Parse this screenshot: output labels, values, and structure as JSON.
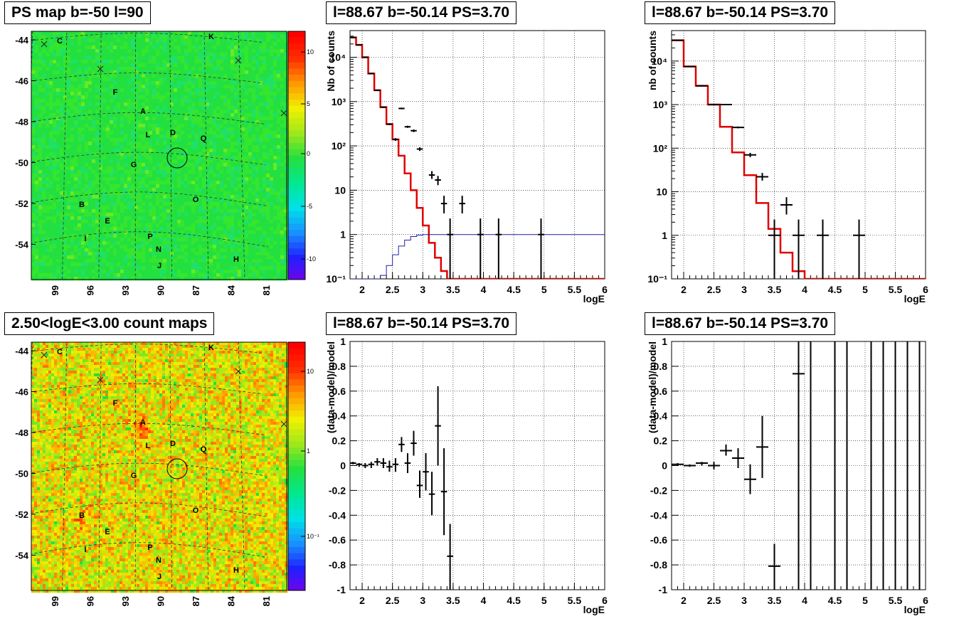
{
  "panels": [
    {
      "id": "ps-map",
      "title": "PS map b=-50 l=90",
      "type": "heatmap",
      "y_ticks": [
        "-44",
        "-46",
        "-48",
        "-50",
        "-52",
        "-54"
      ],
      "x_ticks": [
        "99",
        "96",
        "93",
        "90",
        "87",
        "84",
        "81"
      ],
      "colorbar_ticks": [
        "10",
        "5",
        "0",
        "-5",
        "-10"
      ],
      "base_color": "#22e040"
    },
    {
      "id": "count-map",
      "title": "2.50<logE<3.00 count maps",
      "type": "heatmap",
      "y_ticks": [
        "-44",
        "-46",
        "-48",
        "-50",
        "-52",
        "-54"
      ],
      "x_ticks": [
        "99",
        "96",
        "93",
        "90",
        "87",
        "84",
        "81"
      ],
      "colorbar_ticks": [
        "10",
        "1",
        "10⁻¹"
      ],
      "base_color": "#ee9a2a"
    }
  ],
  "map_labels": [
    {
      "text": "C",
      "lon": 98.3,
      "lat": -44.2
    },
    {
      "text": "K",
      "lon": 86.0,
      "lat": -43.9
    },
    {
      "text": "F",
      "lon": 94.0,
      "lat": -46.8
    },
    {
      "text": "A",
      "lon": 91.7,
      "lat": -47.9
    },
    {
      "text": "L",
      "lon": 91.1,
      "lat": -48.8
    },
    {
      "text": "D",
      "lon": 89.3,
      "lat": -48.8
    },
    {
      "text": "Q",
      "lon": 86.8,
      "lat": -49.0
    },
    {
      "text": "G",
      "lon": 92.4,
      "lat": -50.1
    },
    {
      "text": "O",
      "lon": 87.3,
      "lat": -51.9
    },
    {
      "text": "B",
      "lon": 96.6,
      "lat": -52.2
    },
    {
      "text": "E",
      "lon": 95.2,
      "lat": -53.0
    },
    {
      "text": "P",
      "lon": 91.0,
      "lat": -53.8
    },
    {
      "text": "I",
      "lon": 96.0,
      "lat": -54.0
    },
    {
      "text": "N",
      "lon": 90.2,
      "lat": -54.4
    },
    {
      "text": "H",
      "lon": 84.0,
      "lat": -54.9
    },
    {
      "text": "J",
      "lon": 90.2,
      "lat": -55.2
    }
  ],
  "chart_data": [
    {
      "type": "line",
      "title": "l=88.67 b=-50.14 PS=3.70",
      "xlabel": "logE",
      "ylabel": "Nb of counts",
      "xlim": [
        1.8,
        6.0
      ],
      "ylim": [
        0.1,
        40000
      ],
      "yscale": "log",
      "x_ticks": [
        "2",
        "2.5",
        "3",
        "3.5",
        "4",
        "4.5",
        "5",
        "5.5",
        "6"
      ],
      "y_ticks": [
        "10⁻¹",
        "1",
        "10",
        "10²",
        "10³",
        "10⁴"
      ],
      "grid": true,
      "edges": [
        1.8,
        1.9,
        2.0,
        2.1,
        2.2,
        2.3,
        2.4,
        2.5,
        2.6,
        2.7,
        2.8,
        2.9,
        3.0,
        3.1,
        3.2,
        3.3,
        3.4,
        3.5,
        3.6,
        3.7,
        3.8,
        3.9,
        4.0,
        4.1,
        4.2,
        4.3,
        4.4,
        4.5,
        4.6,
        4.7,
        4.8,
        4.9,
        5.0,
        5.1,
        5.2,
        5.3,
        5.4,
        5.5,
        5.6,
        5.7,
        5.8,
        5.9,
        6.0
      ],
      "series": [
        {
          "color": "#e00000",
          "width": 2.5,
          "values": [
            28000,
            19000,
            10000,
            4300,
            1800,
            750,
            310,
            140,
            60,
            24,
            10,
            4.0,
            1.6,
            0.65,
            0.3,
            0.15,
            0.1,
            0.1,
            0.1,
            0.1,
            0.1,
            0.1,
            0.1,
            0.1,
            0.1,
            0.1,
            0.1,
            0.1,
            0.1,
            0.1,
            0.1,
            0.1,
            0.1,
            0.1,
            0.1,
            0.1,
            0.1,
            0.1,
            0.1,
            0.1,
            0.1,
            0.1
          ]
        },
        {
          "color": "#2020b0",
          "width": 1,
          "values": [
            0.1,
            0.1,
            0.1,
            0.1,
            0.1,
            0.12,
            0.2,
            0.35,
            0.55,
            0.75,
            0.9,
            0.97,
            1.0,
            1.0,
            1.0,
            1.0,
            1.0,
            1.0,
            1.0,
            1.0,
            1.0,
            1.0,
            1.0,
            1.0,
            1.0,
            1.0,
            1.0,
            1.0,
            1.0,
            1.0,
            1.0,
            1.0,
            1.0,
            1.0,
            1.0,
            1.0,
            1.0,
            1.0,
            1.0,
            1.0,
            1.0,
            1.0
          ]
        }
      ],
      "points": [
        {
          "x": 1.85,
          "y": 28000,
          "lo": 27000,
          "hi": 29000,
          "xe": 0.05
        },
        {
          "x": 1.95,
          "y": 19000,
          "lo": 18500,
          "hi": 19500,
          "xe": 0.05
        },
        {
          "x": 2.05,
          "y": 10000,
          "lo": 9800,
          "hi": 10200,
          "xe": 0.05
        },
        {
          "x": 2.15,
          "y": 4300,
          "lo": 4200,
          "hi": 4400,
          "xe": 0.05
        },
        {
          "x": 2.25,
          "y": 1800,
          "lo": 1750,
          "hi": 1850,
          "xe": 0.05
        },
        {
          "x": 2.35,
          "y": 750,
          "lo": 720,
          "hi": 780,
          "xe": 0.05
        },
        {
          "x": 2.45,
          "y": 310,
          "lo": 295,
          "hi": 325,
          "xe": 0.05
        },
        {
          "x": 2.55,
          "y": 140,
          "lo": 130,
          "hi": 150,
          "xe": 0.05
        },
        {
          "x": 2.65,
          "y": 700,
          "lo": 670,
          "hi": 730,
          "xe": 0.05
        },
        {
          "x": 2.75,
          "y": 270,
          "lo": 255,
          "hi": 285,
          "xe": 0.05
        },
        {
          "x": 2.85,
          "y": 220,
          "lo": 205,
          "hi": 235,
          "xe": 0.05
        },
        {
          "x": 2.95,
          "y": 85,
          "lo": 77,
          "hi": 93,
          "xe": 0.05
        },
        {
          "x": 3.15,
          "y": 22,
          "lo": 18,
          "hi": 27,
          "xe": 0.05
        },
        {
          "x": 3.25,
          "y": 17,
          "lo": 13,
          "hi": 21,
          "xe": 0.05
        },
        {
          "x": 3.35,
          "y": 5,
          "lo": 3,
          "hi": 7.5,
          "xe": 0.05
        },
        {
          "x": 3.45,
          "y": 1,
          "lo": 0.1,
          "hi": 2.3,
          "xe": 0.05
        },
        {
          "x": 3.65,
          "y": 5,
          "lo": 3,
          "hi": 7.5,
          "xe": 0.05
        },
        {
          "x": 3.95,
          "y": 1,
          "lo": 0.1,
          "hi": 2.3,
          "xe": 0.05
        },
        {
          "x": 4.25,
          "y": 1,
          "lo": 0.1,
          "hi": 2.3,
          "xe": 0.05
        },
        {
          "x": 4.95,
          "y": 1,
          "lo": 0.1,
          "hi": 2.3,
          "xe": 0.05
        }
      ]
    },
    {
      "type": "line",
      "title": "l=88.67 b=-50.14 PS=3.70",
      "xlabel": "logE",
      "ylabel": "nb of counts",
      "xlim": [
        1.8,
        6.0
      ],
      "ylim": [
        0.1,
        50000
      ],
      "yscale": "log",
      "x_ticks": [
        "2",
        "2.5",
        "3",
        "3.5",
        "4",
        "4.5",
        "5",
        "5.5",
        "6"
      ],
      "y_ticks": [
        "10⁻¹",
        "1",
        "10",
        "10²",
        "10³",
        "10⁴"
      ],
      "grid": true,
      "edges": [
        1.8,
        2.0,
        2.2,
        2.4,
        2.6,
        2.8,
        3.0,
        3.2,
        3.4,
        3.6,
        3.8,
        4.0,
        4.2,
        4.4,
        4.6,
        4.8,
        5.0,
        5.2,
        5.4,
        5.6,
        5.8,
        6.0
      ],
      "series": [
        {
          "color": "#e00000",
          "width": 2.5,
          "values": [
            30000,
            7500,
            2700,
            1000,
            310,
            80,
            24,
            5.5,
            1.4,
            0.4,
            0.15,
            0.1,
            0.1,
            0.1,
            0.1,
            0.1,
            0.1,
            0.1,
            0.1,
            0.1,
            0.1
          ]
        }
      ],
      "points": [
        {
          "x": 1.9,
          "y": 30000,
          "lo": 29500,
          "hi": 30500,
          "xe": 0.1
        },
        {
          "x": 2.1,
          "y": 7500,
          "lo": 7350,
          "hi": 7650,
          "xe": 0.1
        },
        {
          "x": 2.3,
          "y": 2700,
          "lo": 2600,
          "hi": 2800,
          "xe": 0.1
        },
        {
          "x": 2.5,
          "y": 1000,
          "lo": 970,
          "hi": 1030,
          "xe": 0.1
        },
        {
          "x": 2.7,
          "y": 1000,
          "lo": 970,
          "hi": 1030,
          "xe": 0.1
        },
        {
          "x": 2.9,
          "y": 300,
          "lo": 285,
          "hi": 315,
          "xe": 0.1
        },
        {
          "x": 3.1,
          "y": 70,
          "lo": 62,
          "hi": 78,
          "xe": 0.1
        },
        {
          "x": 3.3,
          "y": 22,
          "lo": 18,
          "hi": 27,
          "xe": 0.1
        },
        {
          "x": 3.5,
          "y": 1,
          "lo": 0.1,
          "hi": 2.3,
          "xe": 0.1
        },
        {
          "x": 3.7,
          "y": 5,
          "lo": 3,
          "hi": 7.5,
          "xe": 0.1
        },
        {
          "x": 3.9,
          "y": 1,
          "lo": 0.1,
          "hi": 2.3,
          "xe": 0.1
        },
        {
          "x": 4.3,
          "y": 1,
          "lo": 0.1,
          "hi": 2.3,
          "xe": 0.1
        },
        {
          "x": 4.9,
          "y": 1,
          "lo": 0.1,
          "hi": 2.3,
          "xe": 0.1
        }
      ]
    },
    {
      "type": "scatter",
      "title": "l=88.67 b=-50.14 PS=3.70",
      "xlabel": "logE",
      "ylabel": "(data-model)/model",
      "xlim": [
        1.8,
        6.0
      ],
      "ylim": [
        -1.0,
        1.0
      ],
      "yscale": "linear",
      "x_ticks": [
        "2",
        "2.5",
        "3",
        "3.5",
        "4",
        "4.5",
        "5",
        "5.5",
        "6"
      ],
      "y_ticks": [
        "-1",
        "-0.8",
        "-0.6",
        "-0.4",
        "-0.2",
        "0",
        "0.2",
        "0.4",
        "0.6",
        "0.8",
        "1"
      ],
      "grid": true,
      "series": [],
      "points": [
        {
          "x": 1.85,
          "y": 0.02,
          "lo": 0.01,
          "hi": 0.03,
          "xe": 0.05
        },
        {
          "x": 1.95,
          "y": 0.01,
          "lo": -0.01,
          "hi": 0.02,
          "xe": 0.05
        },
        {
          "x": 2.05,
          "y": 0.0,
          "lo": -0.02,
          "hi": 0.02,
          "xe": 0.05
        },
        {
          "x": 2.15,
          "y": 0.01,
          "lo": -0.02,
          "hi": 0.03,
          "xe": 0.05
        },
        {
          "x": 2.25,
          "y": 0.03,
          "lo": 0.0,
          "hi": 0.06,
          "xe": 0.05
        },
        {
          "x": 2.35,
          "y": 0.02,
          "lo": -0.02,
          "hi": 0.06,
          "xe": 0.05
        },
        {
          "x": 2.45,
          "y": -0.01,
          "lo": -0.05,
          "hi": 0.04,
          "xe": 0.05
        },
        {
          "x": 2.55,
          "y": 0.01,
          "lo": -0.05,
          "hi": 0.06,
          "xe": 0.05
        },
        {
          "x": 2.65,
          "y": 0.17,
          "lo": 0.11,
          "hi": 0.23,
          "xe": 0.05
        },
        {
          "x": 2.75,
          "y": 0.02,
          "lo": -0.06,
          "hi": 0.1,
          "xe": 0.05
        },
        {
          "x": 2.85,
          "y": 0.18,
          "lo": 0.08,
          "hi": 0.28,
          "xe": 0.05
        },
        {
          "x": 2.95,
          "y": -0.16,
          "lo": -0.26,
          "hi": -0.04,
          "xe": 0.05
        },
        {
          "x": 3.05,
          "y": -0.05,
          "lo": -0.2,
          "hi": 0.1,
          "xe": 0.05
        },
        {
          "x": 3.15,
          "y": -0.23,
          "lo": -0.4,
          "hi": -0.05,
          "xe": 0.05
        },
        {
          "x": 3.25,
          "y": 0.32,
          "lo": 0.0,
          "hi": 0.64,
          "xe": 0.05
        },
        {
          "x": 3.35,
          "y": -0.21,
          "lo": -0.56,
          "hi": 0.14,
          "xe": 0.05
        },
        {
          "x": 3.45,
          "y": -0.73,
          "lo": -1.0,
          "hi": -0.47,
          "xe": 0.05
        }
      ]
    },
    {
      "type": "scatter",
      "title": "l=88.67 b=-50.14 PS=3.70",
      "xlabel": "logE",
      "ylabel": "(data-model)/model",
      "xlim": [
        1.8,
        6.0
      ],
      "ylim": [
        -1.0,
        1.0
      ],
      "yscale": "linear",
      "x_ticks": [
        "2",
        "2.5",
        "3",
        "3.5",
        "4",
        "4.5",
        "5",
        "5.5",
        "6"
      ],
      "y_ticks": [
        "-1",
        "-0.8",
        "-0.6",
        "-0.4",
        "-0.2",
        "0",
        "0.2",
        "0.4",
        "0.6",
        "0.8",
        "1"
      ],
      "grid": true,
      "series": [],
      "points": [
        {
          "x": 1.9,
          "y": 0.01,
          "lo": 0.0,
          "hi": 0.02,
          "xe": 0.1
        },
        {
          "x": 2.1,
          "y": 0.0,
          "lo": -0.01,
          "hi": 0.01,
          "xe": 0.1
        },
        {
          "x": 2.3,
          "y": 0.02,
          "lo": 0.0,
          "hi": 0.03,
          "xe": 0.1
        },
        {
          "x": 2.5,
          "y": 0.0,
          "lo": -0.03,
          "hi": 0.03,
          "xe": 0.1
        },
        {
          "x": 2.7,
          "y": 0.12,
          "lo": 0.08,
          "hi": 0.17,
          "xe": 0.1
        },
        {
          "x": 2.9,
          "y": 0.06,
          "lo": -0.02,
          "hi": 0.14,
          "xe": 0.1
        },
        {
          "x": 3.1,
          "y": -0.11,
          "lo": -0.23,
          "hi": 0.01,
          "xe": 0.1
        },
        {
          "x": 3.3,
          "y": 0.15,
          "lo": -0.1,
          "hi": 0.4,
          "xe": 0.1
        },
        {
          "x": 3.5,
          "y": -0.81,
          "lo": -1.0,
          "hi": -0.63,
          "xe": 0.1
        },
        {
          "x": 3.9,
          "y": 0.74,
          "lo": 0.0,
          "hi": 1.0,
          "xe": 0.1
        },
        {
          "x": 3.9,
          "y": 1.0,
          "lo": -1.0,
          "hi": 1.0,
          "xe": 0.0
        },
        {
          "x": 4.1,
          "y": 1.0,
          "lo": -1.0,
          "hi": 1.0,
          "xe": 0.0
        },
        {
          "x": 4.5,
          "y": 1.0,
          "lo": -1.0,
          "hi": 1.0,
          "xe": 0.0
        },
        {
          "x": 4.7,
          "y": 1.0,
          "lo": -1.0,
          "hi": 1.0,
          "xe": 0.0
        },
        {
          "x": 5.1,
          "y": 1.0,
          "lo": -1.0,
          "hi": 1.0,
          "xe": 0.0
        },
        {
          "x": 5.3,
          "y": 1.0,
          "lo": -1.0,
          "hi": 1.0,
          "xe": 0.0
        },
        {
          "x": 5.5,
          "y": 1.0,
          "lo": -1.0,
          "hi": 1.0,
          "xe": 0.0
        },
        {
          "x": 5.7,
          "y": 1.0,
          "lo": -1.0,
          "hi": 1.0,
          "xe": 0.0
        },
        {
          "x": 5.9,
          "y": 1.0,
          "lo": -1.0,
          "hi": 1.0,
          "xe": 0.0
        }
      ]
    }
  ]
}
